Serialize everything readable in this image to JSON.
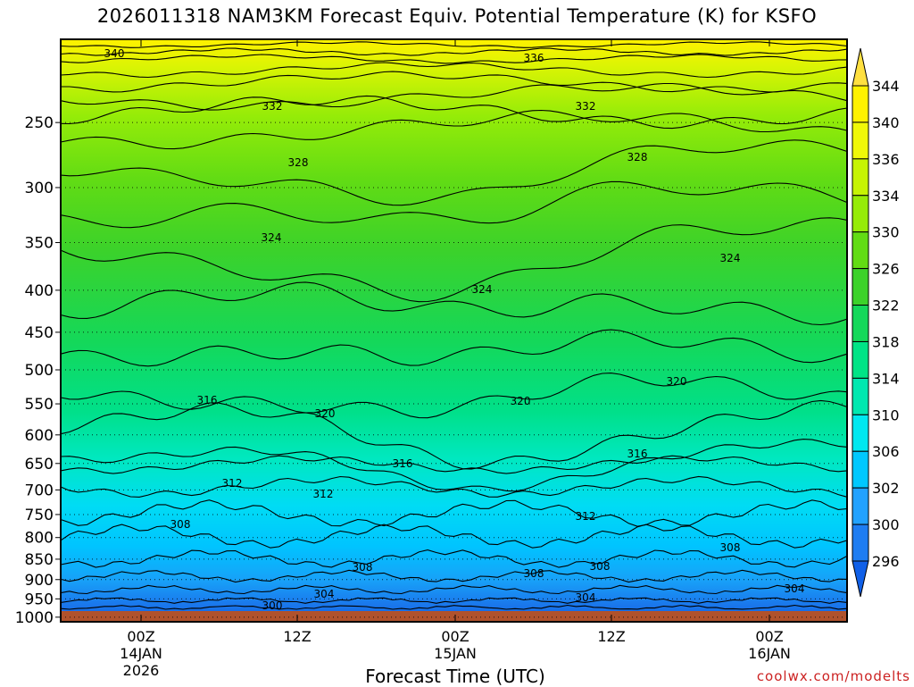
{
  "chart_data": {
    "type": "heatmap",
    "title": "2026011318 NAM3KM Forecast Equiv. Potential Temperature (K) for KSFO",
    "xlabel": "Forecast Time (UTC)",
    "ylabel": "",
    "y_axis": {
      "ticks": [
        250,
        300,
        350,
        400,
        450,
        500,
        550,
        600,
        650,
        700,
        750,
        800,
        850,
        900,
        950,
        1000
      ],
      "reversed": true,
      "scale": "log"
    },
    "x_axis": {
      "ticks": [
        {
          "line1": "00Z",
          "line2": "14JAN",
          "line3": "2026"
        },
        {
          "line1": "12Z",
          "line2": "",
          "line3": ""
        },
        {
          "line1": "00Z",
          "line2": "15JAN",
          "line3": ""
        },
        {
          "line1": "12Z",
          "line2": "",
          "line3": ""
        },
        {
          "line1": "00Z",
          "line2": "16JAN",
          "line3": ""
        }
      ]
    },
    "colorbar": {
      "ticks": [
        296,
        300,
        302,
        306,
        310,
        314,
        318,
        322,
        326,
        330,
        334,
        336,
        340,
        344
      ],
      "colors": [
        "#1060e8",
        "#1e7df2",
        "#22a2ff",
        "#00c8ff",
        "#00e8f0",
        "#00e8b0",
        "#00e486",
        "#14d85a",
        "#3cd22a",
        "#62dc14",
        "#96ec08",
        "#c6f404",
        "#f0f808",
        "#fff200",
        "#ffe040"
      ]
    },
    "contour_labels": [
      "340",
      "336",
      "332",
      "332",
      "328",
      "328",
      "324",
      "324",
      "324",
      "320",
      "320",
      "320",
      "316",
      "316",
      "316",
      "312",
      "312",
      "312",
      "308",
      "308",
      "308",
      "308",
      "308",
      "304",
      "304",
      "304",
      "300"
    ],
    "grid": "dotted horizontal at pressure ticks",
    "ground_color": "#b0522c"
  },
  "credit": "coolwx.com/modelts"
}
